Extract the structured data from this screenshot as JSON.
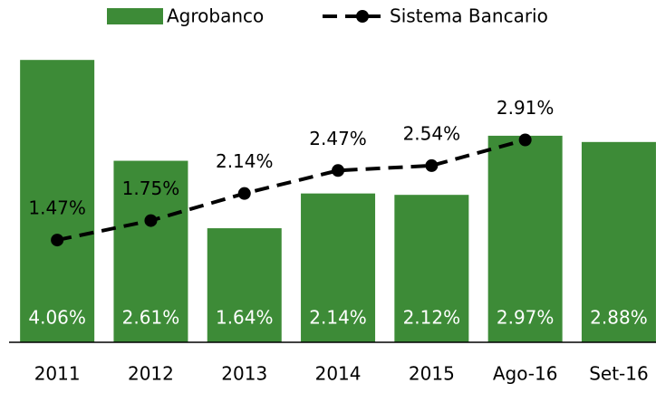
{
  "chart_data": {
    "type": "bar",
    "categories": [
      "2011",
      "2012",
      "2013",
      "2014",
      "2015",
      "Ago-16",
      "Set-16"
    ],
    "series": [
      {
        "name": "Agrobanco",
        "type": "bar",
        "color": "#3d8b37",
        "values": [
          4.06,
          2.61,
          1.64,
          2.14,
          2.12,
          2.97,
          2.88
        ],
        "value_labels": [
          "4.06%",
          "2.61%",
          "1.64%",
          "2.14%",
          "2.12%",
          "2.97%",
          "2.88%"
        ]
      },
      {
        "name": "Sistema Bancario",
        "type": "line",
        "color": "#000000",
        "values": [
          1.47,
          1.75,
          2.14,
          2.47,
          2.54,
          2.91,
          null
        ],
        "value_labels": [
          "1.47%",
          "1.75%",
          "2.14%",
          "2.47%",
          "2.54%",
          "2.91%",
          null
        ]
      }
    ],
    "ylim": [
      0,
      4.5
    ],
    "legend": "top"
  }
}
